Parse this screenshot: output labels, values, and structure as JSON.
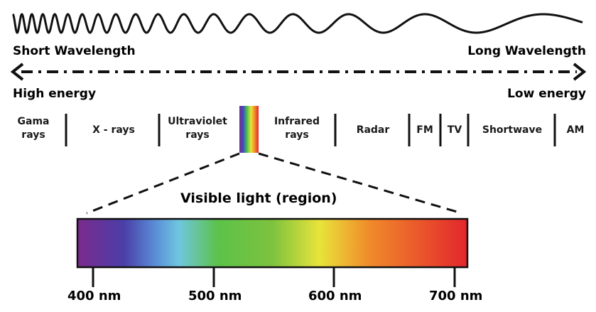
{
  "wave_header": {
    "short_label": "Short Wavelength",
    "long_label": "Long Wavelength",
    "high_label": "High energy",
    "low_label": "Low energy"
  },
  "bands": [
    {
      "line1": "Gama",
      "line2": "rays"
    },
    {
      "line1": "X - rays",
      "line2": ""
    },
    {
      "line1": "Ultraviolet",
      "line2": "rays"
    },
    {
      "line1": "Infrared",
      "line2": "rays"
    },
    {
      "line1": "Radar",
      "line2": ""
    },
    {
      "line1": "FM",
      "line2": ""
    },
    {
      "line1": "TV",
      "line2": ""
    },
    {
      "line1": "Shortwave",
      "line2": ""
    },
    {
      "line1": "AM",
      "line2": ""
    }
  ],
  "visible": {
    "title": "Visible light (region)",
    "ticks": [
      "400 nm",
      "500 nm",
      "600 nm",
      "700 nm"
    ]
  },
  "colors": {
    "spectrum_stops": [
      "#7b2a8c",
      "#4a3fa8",
      "#6fc6e0",
      "#5cc24a",
      "#7dc23e",
      "#e8e43a",
      "#f08a2a",
      "#e3262d"
    ]
  }
}
